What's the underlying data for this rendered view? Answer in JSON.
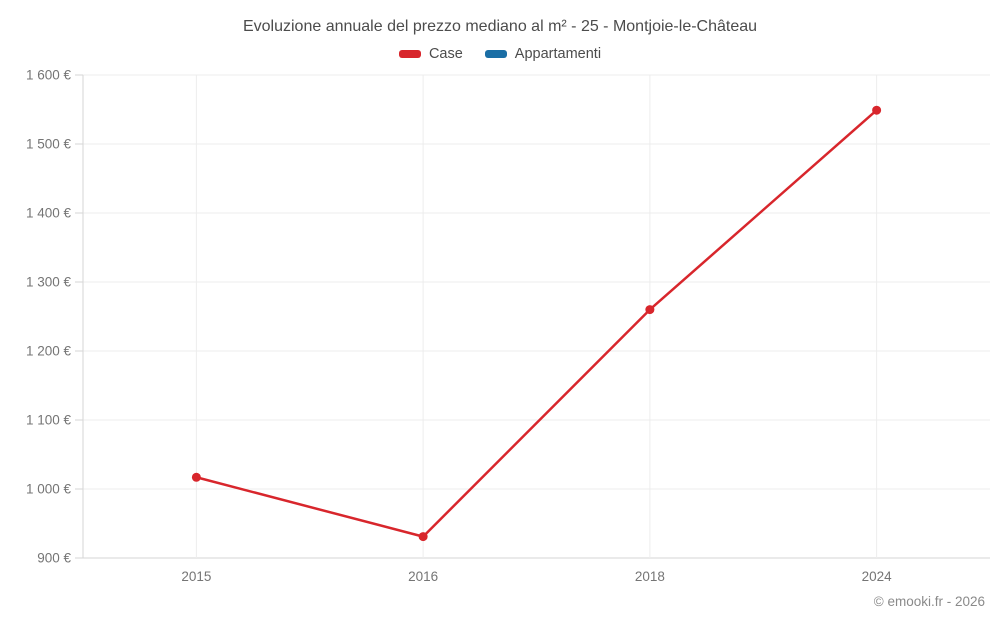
{
  "title": "Evoluzione annuale del prezzo mediano al m² - 25 - Montjoie-le-Château",
  "footer": "© emooki.fr - 2026",
  "legend": [
    {
      "label": "Case",
      "color": "#d8262c"
    },
    {
      "label": "Appartamenti",
      "color": "#1a6ea5"
    }
  ],
  "colors": {
    "grid": "#ededed",
    "axis": "#d6d6d6",
    "tick_text": "#757575",
    "title_text": "#4c4c4c",
    "footer_text": "#8a8a8a"
  },
  "chart_data": {
    "type": "line",
    "title": "Evoluzione annuale del prezzo mediano al m² - 25 - Montjoie-le-Château",
    "categories": [
      "2015",
      "2016",
      "2018",
      "2024"
    ],
    "series": [
      {
        "name": "Case",
        "color": "#d8262c",
        "values": [
          1017,
          931,
          1260,
          1549
        ]
      },
      {
        "name": "Appartamenti",
        "color": "#1a6ea5",
        "values": []
      }
    ],
    "xlabel": "",
    "ylabel": "",
    "ylim": [
      900,
      1600
    ],
    "y_ticks": [
      {
        "value": 900,
        "label": "900 €"
      },
      {
        "value": 1000,
        "label": "1 000 €"
      },
      {
        "value": 1100,
        "label": "1 100 €"
      },
      {
        "value": 1200,
        "label": "1 200 €"
      },
      {
        "value": 1300,
        "label": "1 300 €"
      },
      {
        "value": 1400,
        "label": "1 400 €"
      },
      {
        "value": 1500,
        "label": "1 500 €"
      },
      {
        "value": 1600,
        "label": "1 600 €"
      }
    ],
    "grid": true,
    "legend_position": "top",
    "marker_radius": 4.5,
    "line_width": 2.5
  }
}
